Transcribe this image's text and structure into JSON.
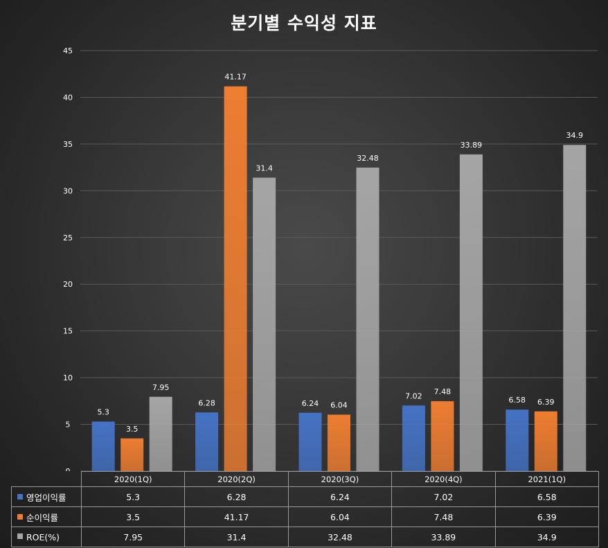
{
  "colors": {
    "operating_margin": "#4472c4",
    "net_margin": "#ed7d31",
    "roe": "#a5a5a5",
    "grid": "#5a5a5a"
  },
  "chart_data": {
    "type": "bar",
    "title": "분기별 수익성 지표",
    "categories": [
      "2020(1Q)",
      "2020(2Q)",
      "2020(3Q)",
      "2020(4Q)",
      "2021(1Q)"
    ],
    "series": [
      {
        "name": "영업이익률",
        "values": [
          5.3,
          6.28,
          6.24,
          7.02,
          6.58
        ]
      },
      {
        "name": "순이익률",
        "values": [
          3.5,
          41.17,
          6.04,
          7.48,
          6.39
        ]
      },
      {
        "name": "ROE(%)",
        "values": [
          7.95,
          31.4,
          32.48,
          33.89,
          34.9
        ]
      }
    ],
    "ylim": [
      0,
      45
    ],
    "yticks": [
      "0",
      "5",
      "10",
      "15",
      "20",
      "25",
      "30",
      "35",
      "40",
      "45"
    ],
    "grid": true,
    "legend": "data table below chart",
    "data_table": true
  }
}
